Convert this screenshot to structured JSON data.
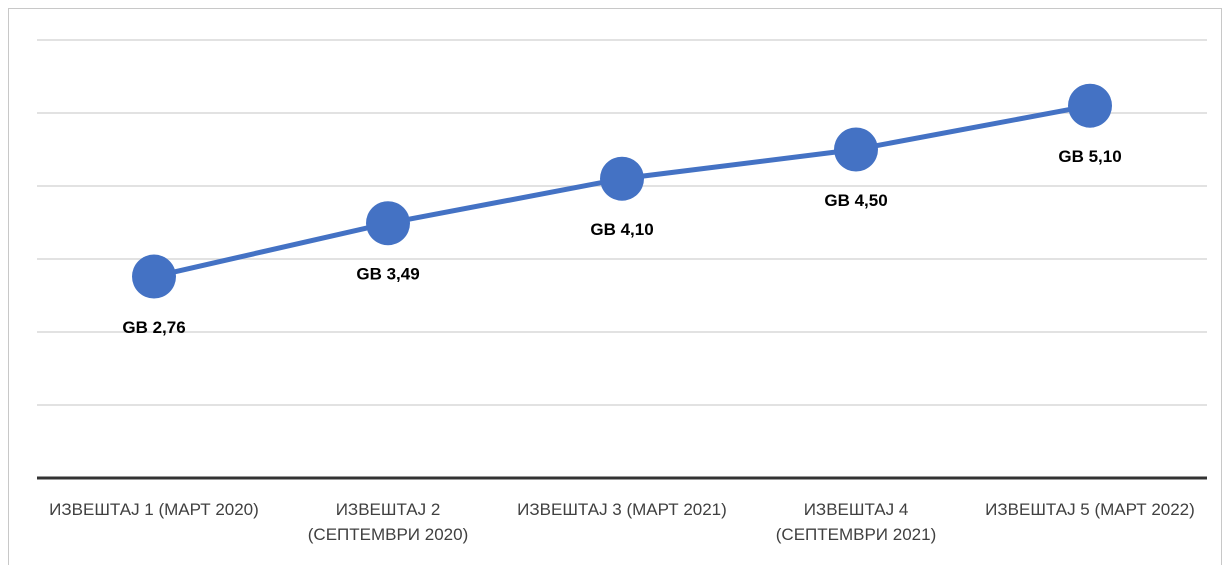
{
  "chart_data": {
    "type": "line",
    "categories": [
      "ИЗВЕШТАЈ 1 (МАРТ 2020)",
      "ИЗВЕШТАЈ 2 (СЕПТЕМВРИ 2020)",
      "ИЗВЕШТАЈ 3 (МАРТ 2021)",
      "ИЗВЕШТАЈ 4 (СЕПТЕМВРИ 2021)",
      "ИЗВЕШТАЈ 5 (МАРТ 2022)"
    ],
    "values": [
      2.76,
      3.49,
      4.1,
      4.5,
      5.1
    ],
    "value_labels": [
      "GB  2,76",
      "GB  3,49",
      "GB  4,10",
      "GB  4,50",
      "GB  5,10"
    ],
    "color": "#4472c4",
    "ylim": [
      0,
      6
    ],
    "yticks": [
      0,
      1,
      2,
      3,
      4,
      5,
      6
    ],
    "grid": true
  }
}
